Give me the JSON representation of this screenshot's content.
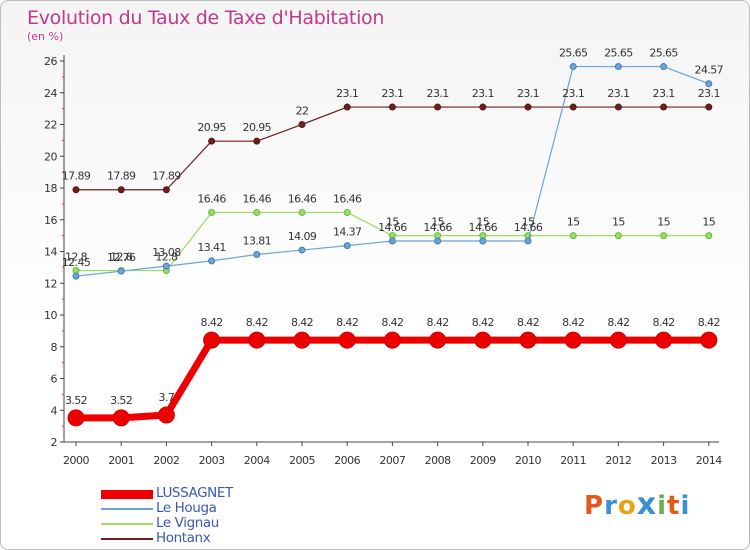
{
  "header": {
    "title": "Evolution du Taux de Taxe d'Habitation",
    "subtitle": "(en %)"
  },
  "logo": {
    "text": "Proxiti",
    "letters": [
      "P",
      "r",
      "o",
      "x",
      "i",
      "t",
      "i"
    ],
    "colors": [
      "#e05a1c",
      "#3a8fd6",
      "#e8a317",
      "#3a8fd6",
      "#6ab04c",
      "#e05a1c",
      "#3a8fd6"
    ]
  },
  "chart_data": {
    "type": "line",
    "title": "Evolution du Taux de Taxe d'Habitation",
    "ylabel": "(en %)",
    "x": [
      "2000",
      "2001",
      "2002",
      "2003",
      "2004",
      "2005",
      "2006",
      "2007",
      "2008",
      "2009",
      "2010",
      "2011",
      "2012",
      "2013",
      "2014"
    ],
    "yticks": [
      "2",
      "4",
      "6",
      "8",
      "10",
      "12",
      "14",
      "16",
      "18",
      "20",
      "22",
      "24",
      "26"
    ],
    "ylim": [
      2,
      26
    ],
    "grid": false,
    "legend_position": "bottom-left",
    "series": [
      {
        "name": "LUSSAGNET",
        "color": "#ee0000",
        "width": 7,
        "marker": 8,
        "values": [
          3.52,
          3.52,
          3.7,
          8.42,
          8.42,
          8.42,
          8.42,
          8.42,
          8.42,
          8.42,
          8.42,
          8.42,
          8.42,
          8.42,
          8.42
        ],
        "labels": [
          "3.52",
          "3.52",
          "3.7",
          "8.42",
          "8.42",
          "8.42",
          "8.42",
          "8.42",
          "8.42",
          "8.42",
          "8.42",
          "8.42",
          "8.42",
          "8.42",
          "8.42"
        ]
      },
      {
        "name": "Le Houga",
        "color": "#6ea3d2",
        "dot": "#3e7fc0",
        "width": 1.2,
        "marker": 3,
        "values": [
          12.45,
          12.76,
          13.08,
          13.41,
          13.81,
          14.09,
          14.37,
          14.66,
          14.66,
          14.66,
          14.66,
          25.65,
          25.65,
          25.65,
          24.57
        ],
        "labels": [
          "12.45",
          "12.76",
          "13.08",
          "13.41",
          "13.81",
          "14.09",
          "14.37",
          "14.66",
          "14.66",
          "14.66",
          "14.66",
          "25.65",
          "25.65",
          "25.65",
          "24.57"
        ]
      },
      {
        "name": "Le Vignau",
        "color": "#99dd66",
        "dot": "#66bb33",
        "width": 1.2,
        "marker": 3,
        "values": [
          12.8,
          12.8,
          12.8,
          16.46,
          16.46,
          16.46,
          16.46,
          15,
          15,
          15,
          15,
          15,
          15,
          15,
          15
        ],
        "labels": [
          "12.8",
          "12.8",
          "12.8",
          "16.46",
          "16.46",
          "16.46",
          "16.46",
          "15",
          "15",
          "15",
          "15",
          "15",
          "15",
          "15",
          "15"
        ]
      },
      {
        "name": "Hontanx",
        "color": "#6b2020",
        "dot": "#5a1515",
        "width": 1.2,
        "marker": 3,
        "values": [
          17.89,
          17.89,
          17.89,
          20.95,
          20.95,
          22,
          23.1,
          23.1,
          23.1,
          23.1,
          23.1,
          23.1,
          23.1,
          23.1,
          23.1
        ],
        "labels": [
          "17.89",
          "17.89",
          "17.89",
          "20.95",
          "20.95",
          "22",
          "23.1",
          "23.1",
          "23.1",
          "23.1",
          "23.1",
          "23.1",
          "23.1",
          "23.1",
          "23.1"
        ]
      }
    ]
  }
}
